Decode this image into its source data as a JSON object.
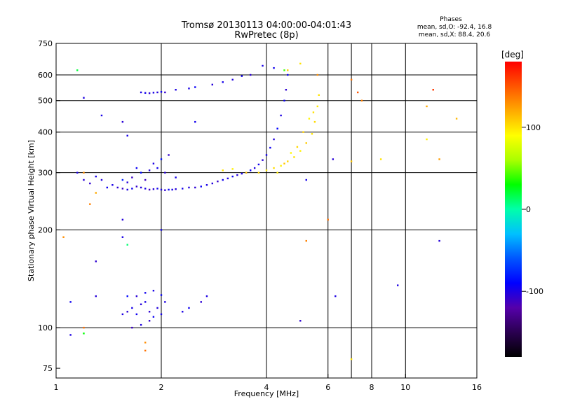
{
  "chart_data": {
    "type": "scatter",
    "title": "Tromsø 20130113 04:00:00-04:01:43",
    "subtitle": "RwPretec (8p)",
    "xlabel": "Frequency [MHz]",
    "ylabel": "Stationary phase Virtual Height [km]",
    "x_scale": "log",
    "y_scale": "log",
    "xlim": [
      1,
      16
    ],
    "ylim": [
      70,
      750
    ],
    "x_ticks": [
      "1",
      "2",
      "4",
      "6",
      "8",
      "10",
      "16"
    ],
    "x_grid": [
      2,
      4,
      6,
      7,
      8,
      10
    ],
    "y_ticks": [
      "75",
      "100",
      "200",
      "300",
      "400",
      "500",
      "600",
      "750"
    ],
    "y_grid": [
      100,
      200,
      300,
      400,
      500,
      600
    ],
    "grid": true,
    "colorbar": {
      "label": "[deg]",
      "range": [
        -180,
        180
      ],
      "ticks": [
        "100",
        "0",
        "-100"
      ],
      "colors": [
        "#000000",
        "#2a0050",
        "#5500aa",
        "#0000ff",
        "#0055ff",
        "#00c0ff",
        "#00ffaa",
        "#00ff00",
        "#aaff00",
        "#ffff00",
        "#ffaa00",
        "#ff5500",
        "#ff0000"
      ]
    },
    "stats": {
      "heading": "Phases",
      "o_line": "mean, sd,O: -92.4, 16.8",
      "x_line": "mean, sd,X:  88.4, 20.6"
    },
    "series": [
      {
        "mode": "O",
        "points": [
          [
            1.5,
            270,
            -105
          ],
          [
            1.55,
            268,
            -110
          ],
          [
            1.6,
            266,
            -100
          ],
          [
            1.65,
            268,
            -95
          ],
          [
            1.7,
            272,
            -108
          ],
          [
            1.75,
            270,
            -102
          ],
          [
            1.8,
            268,
            -98
          ],
          [
            1.85,
            266,
            -112
          ],
          [
            1.9,
            267,
            -104
          ],
          [
            1.95,
            268,
            -96
          ],
          [
            2.0,
            266,
            -100
          ],
          [
            2.05,
            265,
            -106
          ],
          [
            2.1,
            266,
            -92
          ],
          [
            2.15,
            266,
            -99
          ],
          [
            2.2,
            267,
            -103
          ],
          [
            2.3,
            268,
            -97
          ],
          [
            2.4,
            270,
            -101
          ],
          [
            2.5,
            270,
            -105
          ],
          [
            2.6,
            272,
            -93
          ],
          [
            2.7,
            275,
            -99
          ],
          [
            2.8,
            278,
            -102
          ],
          [
            2.9,
            282,
            -108
          ],
          [
            3.0,
            285,
            -96
          ],
          [
            3.1,
            288,
            -100
          ],
          [
            3.2,
            292,
            -94
          ],
          [
            3.3,
            295,
            -103
          ],
          [
            3.4,
            298,
            -98
          ],
          [
            3.5,
            300,
            -106
          ],
          [
            3.6,
            305,
            -92
          ],
          [
            3.7,
            310,
            -100
          ],
          [
            3.8,
            318,
            -96
          ],
          [
            3.9,
            328,
            -104
          ],
          [
            4.0,
            340,
            -98
          ],
          [
            4.1,
            358,
            -95
          ],
          [
            4.2,
            380,
            -102
          ],
          [
            4.3,
            410,
            -90
          ],
          [
            4.4,
            450,
            -100
          ],
          [
            4.5,
            500,
            -94
          ],
          [
            4.55,
            540,
            -106
          ],
          [
            4.6,
            600,
            -92
          ],
          [
            1.55,
            285,
            -80
          ],
          [
            1.65,
            290,
            -110
          ],
          [
            1.75,
            300,
            -88
          ],
          [
            1.85,
            305,
            -102
          ],
          [
            1.95,
            310,
            -96
          ],
          [
            2.05,
            300,
            -104
          ],
          [
            1.7,
            310,
            -94
          ],
          [
            1.9,
            320,
            -100
          ],
          [
            2.0,
            330,
            -85
          ],
          [
            2.1,
            340,
            -108
          ],
          [
            1.8,
            285,
            -112
          ],
          [
            2.2,
            290,
            -97
          ],
          [
            1.6,
            280,
            -103
          ],
          [
            1.45,
            275,
            -99
          ],
          [
            1.4,
            270,
            -95
          ],
          [
            1.35,
            285,
            -102
          ],
          [
            1.3,
            292,
            -98
          ],
          [
            1.25,
            278,
            -106
          ],
          [
            1.2,
            285,
            -104
          ],
          [
            1.15,
            300,
            -100
          ],
          [
            1.75,
            530,
            -100
          ],
          [
            1.8,
            528,
            -96
          ],
          [
            1.85,
            527,
            -104
          ],
          [
            1.9,
            529,
            -98
          ],
          [
            1.95,
            530,
            -102
          ],
          [
            2.0,
            532,
            -95
          ],
          [
            2.05,
            530,
            -108
          ],
          [
            2.2,
            540,
            -100
          ],
          [
            2.4,
            545,
            -99
          ],
          [
            2.5,
            550,
            -93
          ],
          [
            2.8,
            560,
            -103
          ],
          [
            3.0,
            570,
            -97
          ],
          [
            3.2,
            580,
            -101
          ],
          [
            3.4,
            595,
            -95
          ],
          [
            3.6,
            600,
            -105
          ],
          [
            3.9,
            640,
            -98
          ],
          [
            4.2,
            630,
            -96
          ],
          [
            1.55,
            110,
            -100
          ],
          [
            1.6,
            112,
            -105
          ],
          [
            1.65,
            115,
            -98
          ],
          [
            1.7,
            110,
            -95
          ],
          [
            1.75,
            118,
            -103
          ],
          [
            1.8,
            120,
            -99
          ],
          [
            1.85,
            112,
            -106
          ],
          [
            1.9,
            108,
            -94
          ],
          [
            1.95,
            115,
            -102
          ],
          [
            2.0,
            110,
            -97
          ],
          [
            2.05,
            120,
            -100
          ],
          [
            1.7,
            125,
            -104
          ],
          [
            1.8,
            128,
            -96
          ],
          [
            1.9,
            130,
            -98
          ],
          [
            2.0,
            126,
            -92
          ],
          [
            1.75,
            102,
            -101
          ],
          [
            1.85,
            105,
            -108
          ],
          [
            2.3,
            112,
            -99
          ],
          [
            2.4,
            115,
            -95
          ],
          [
            2.6,
            120,
            -105
          ],
          [
            2.7,
            125,
            -100
          ],
          [
            1.6,
            125,
            -88
          ],
          [
            1.65,
            100,
            -110
          ],
          [
            1.2,
            510,
            -100
          ],
          [
            1.55,
            430,
            -104
          ],
          [
            1.6,
            390,
            -98
          ],
          [
            2.0,
            200,
            -96
          ],
          [
            1.55,
            215,
            -102
          ],
          [
            1.55,
            190,
            -99
          ],
          [
            1.3,
            160,
            -106
          ],
          [
            1.3,
            125,
            -103
          ],
          [
            1.1,
            120,
            -95
          ],
          [
            2.5,
            430,
            -96
          ],
          [
            6.2,
            330,
            -104
          ],
          [
            6.3,
            125,
            -100
          ],
          [
            5.2,
            285,
            -97
          ],
          [
            5.0,
            105,
            -106
          ],
          [
            9.5,
            135,
            -100
          ],
          [
            12.5,
            185,
            -103
          ],
          [
            1.35,
            450,
            -98
          ],
          [
            1.1,
            95,
            -100
          ]
        ]
      },
      {
        "mode": "X",
        "points": [
          [
            3.0,
            305,
            100
          ],
          [
            3.2,
            308,
            95
          ],
          [
            3.5,
            300,
            110
          ],
          [
            3.8,
            300,
            105
          ],
          [
            4.0,
            305,
            98
          ],
          [
            4.2,
            310,
            102
          ],
          [
            4.4,
            315,
            96
          ],
          [
            4.6,
            325,
            104
          ],
          [
            4.8,
            335,
            100
          ],
          [
            5.0,
            350,
            95
          ],
          [
            5.2,
            370,
            108
          ],
          [
            5.4,
            395,
            99
          ],
          [
            5.5,
            430,
            103
          ],
          [
            5.6,
            480,
            97
          ],
          [
            5.65,
            520,
            100
          ],
          [
            4.5,
            320,
            110
          ],
          [
            4.7,
            345,
            92
          ],
          [
            5.1,
            400,
            106
          ],
          [
            5.3,
            440,
            94
          ],
          [
            5.45,
            460,
            101
          ],
          [
            4.3,
            300,
            98
          ],
          [
            4.9,
            360,
            104
          ],
          [
            5.0,
            650,
            100
          ],
          [
            5.6,
            600,
            130
          ],
          [
            4.6,
            620,
            110
          ],
          [
            7.0,
            580,
            140
          ],
          [
            7.5,
            500,
            135
          ],
          [
            7.3,
            530,
            150
          ],
          [
            11.5,
            480,
            120
          ],
          [
            12.5,
            330,
            125
          ],
          [
            14.0,
            440,
            115
          ],
          [
            8.5,
            330,
            100
          ],
          [
            11.5,
            380,
            95
          ],
          [
            1.2,
            300,
            130
          ],
          [
            1.25,
            240,
            135
          ],
          [
            1.3,
            260,
            120
          ],
          [
            1.05,
            190,
            130
          ],
          [
            1.2,
            100,
            140
          ],
          [
            1.8,
            90,
            130
          ],
          [
            1.8,
            85,
            140
          ],
          [
            7.0,
            325,
            110
          ],
          [
            6.0,
            215,
            140
          ],
          [
            5.2,
            185,
            135
          ],
          [
            7.0,
            80,
            100
          ],
          [
            12.0,
            540,
            160
          ],
          [
            1.15,
            620,
            20
          ],
          [
            1.2,
            96,
            30
          ],
          [
            1.6,
            180,
            10
          ],
          [
            4.5,
            620,
            40
          ]
        ]
      }
    ]
  }
}
